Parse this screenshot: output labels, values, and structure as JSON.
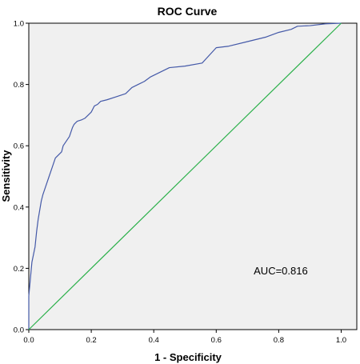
{
  "chart_data": {
    "type": "line",
    "title": "ROC Curve",
    "xlabel": "1 - Specificity",
    "ylabel": "Sensitivity",
    "xlim": [
      0,
      1.05
    ],
    "ylim": [
      0,
      1.0
    ],
    "x_ticks": [
      "0.0",
      "0.2",
      "0.4",
      "0.6",
      "0.8",
      "1.0"
    ],
    "y_ticks": [
      "0.0",
      "0.2",
      "0.4",
      "0.6",
      "0.8",
      "1.0"
    ],
    "grid": false,
    "background_color": "#f0f0f0",
    "annotation": {
      "text": "AUC=0.816",
      "x": 0.72,
      "y": 0.18
    },
    "series": [
      {
        "color": "#4459a8",
        "x": [
          0.0,
          0.0,
          0.01,
          0.02,
          0.025,
          0.03,
          0.035,
          0.04,
          0.045,
          0.055,
          0.065,
          0.075,
          0.085,
          0.095,
          0.105,
          0.11,
          0.13,
          0.14,
          0.145,
          0.15,
          0.155,
          0.17,
          0.18,
          0.19,
          0.2,
          0.21,
          0.22,
          0.225,
          0.23,
          0.25,
          0.28,
          0.31,
          0.33,
          0.35,
          0.37,
          0.39,
          0.42,
          0.45,
          0.5,
          0.555,
          0.6,
          0.64,
          0.7,
          0.76,
          0.8,
          0.84,
          0.86,
          0.9,
          0.95,
          1.0
        ],
        "y": [
          0.0,
          0.11,
          0.22,
          0.27,
          0.32,
          0.36,
          0.39,
          0.42,
          0.44,
          0.47,
          0.5,
          0.53,
          0.56,
          0.57,
          0.58,
          0.6,
          0.63,
          0.66,
          0.67,
          0.675,
          0.68,
          0.685,
          0.69,
          0.7,
          0.71,
          0.73,
          0.735,
          0.74,
          0.745,
          0.75,
          0.76,
          0.77,
          0.79,
          0.8,
          0.81,
          0.825,
          0.84,
          0.855,
          0.86,
          0.87,
          0.92,
          0.925,
          0.94,
          0.955,
          0.97,
          0.98,
          0.99,
          0.992,
          0.998,
          1.0
        ]
      },
      {
        "color": "#2bb04a",
        "x": [
          0.0,
          1.0
        ],
        "y": [
          0.0,
          1.0
        ]
      }
    ]
  }
}
